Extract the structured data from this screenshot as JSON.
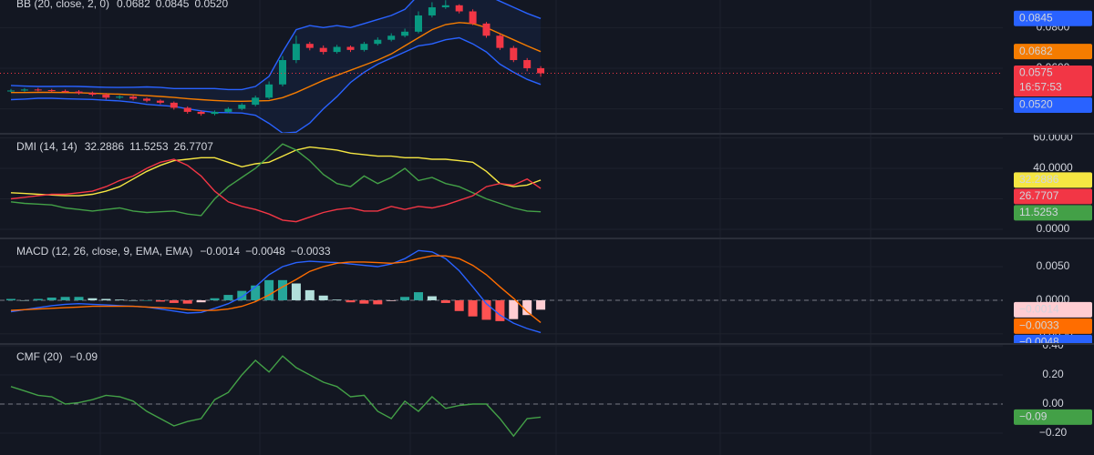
{
  "chart_data": [
    {
      "type": "candlestick",
      "title": "BB (20, close, 2, 0)",
      "up_color": "#089981",
      "down_color": "#f23645",
      "open": [
        0.0488,
        0.049,
        0.0495,
        0.0492,
        0.0488,
        0.0485,
        0.0478,
        0.047,
        0.0455,
        0.046,
        0.045,
        0.044,
        0.043,
        0.0405,
        0.0385,
        0.0375,
        0.0385,
        0.04,
        0.042,
        0.0455,
        0.052,
        0.064,
        0.072,
        0.07,
        0.068,
        0.0705,
        0.069,
        0.072,
        0.074,
        0.076,
        0.078,
        0.086,
        0.09,
        0.091,
        0.088,
        0.082,
        0.076,
        0.07,
        0.064,
        0.06
      ],
      "high": [
        0.0498,
        0.0502,
        0.0503,
        0.0498,
        0.0495,
        0.0492,
        0.0485,
        0.0478,
        0.0466,
        0.0468,
        0.0456,
        0.0446,
        0.0436,
        0.0412,
        0.0392,
        0.0392,
        0.0408,
        0.0428,
        0.0465,
        0.0535,
        0.066,
        0.076,
        0.073,
        0.0712,
        0.0715,
        0.0712,
        0.073,
        0.0752,
        0.0772,
        0.0795,
        0.088,
        0.0925,
        0.0935,
        0.0915,
        0.089,
        0.0828,
        0.077,
        0.071,
        0.065,
        0.061
      ],
      "low": [
        0.0482,
        0.0484,
        0.0486,
        0.0482,
        0.0478,
        0.047,
        0.0462,
        0.0446,
        0.0448,
        0.0442,
        0.0432,
        0.0422,
        0.0396,
        0.0376,
        0.0366,
        0.0368,
        0.0378,
        0.0393,
        0.0412,
        0.0448,
        0.051,
        0.0625,
        0.0688,
        0.0668,
        0.0672,
        0.068,
        0.0682,
        0.0712,
        0.0732,
        0.0752,
        0.0772,
        0.085,
        0.0892,
        0.087,
        0.0812,
        0.075,
        0.069,
        0.063,
        0.0585,
        0.0558
      ],
      "close": [
        0.049,
        0.0495,
        0.0492,
        0.0488,
        0.0485,
        0.0478,
        0.047,
        0.0455,
        0.046,
        0.045,
        0.044,
        0.043,
        0.0405,
        0.0385,
        0.0375,
        0.0385,
        0.04,
        0.042,
        0.0455,
        0.052,
        0.064,
        0.072,
        0.07,
        0.068,
        0.0705,
        0.069,
        0.072,
        0.074,
        0.076,
        0.078,
        0.086,
        0.09,
        0.091,
        0.088,
        0.082,
        0.076,
        0.07,
        0.064,
        0.06,
        0.0575
      ],
      "countdown": "16:57:53",
      "band_fill": "rgba(41,98,255,0.08)",
      "series": [
        {
          "color": "#f57c00",
          "last_label": "0.0682",
          "values": [
            0.048,
            0.048,
            0.0481,
            0.0481,
            0.048,
            0.0479,
            0.0477,
            0.0474,
            0.0472,
            0.0469,
            0.0465,
            0.0461,
            0.0456,
            0.045,
            0.0445,
            0.0441,
            0.0438,
            0.0437,
            0.0439,
            0.044,
            0.0455,
            0.048,
            0.051,
            0.054,
            0.0565,
            0.059,
            0.0615,
            0.064,
            0.067,
            0.071,
            0.075,
            0.079,
            0.0815,
            0.0825,
            0.082,
            0.08,
            0.077,
            0.074,
            0.071,
            0.0682
          ]
        },
        {
          "color": "#2962ff",
          "last_label": "0.0845",
          "values": [
            0.0515,
            0.0512,
            0.051,
            0.051,
            0.0511,
            0.051,
            0.0508,
            0.0506,
            0.0505,
            0.0506,
            0.0508,
            0.0505,
            0.05,
            0.05,
            0.05,
            0.05,
            0.0495,
            0.0495,
            0.051,
            0.056,
            0.068,
            0.079,
            0.081,
            0.08,
            0.081,
            0.08,
            0.082,
            0.084,
            0.086,
            0.089,
            0.096,
            0.1,
            0.102,
            0.101,
            0.099,
            0.096,
            0.093,
            0.09,
            0.087,
            0.0845
          ]
        },
        {
          "color": "#2962ff",
          "last_label": "0.0520",
          "values": [
            0.0445,
            0.0448,
            0.0452,
            0.0452,
            0.0449,
            0.0448,
            0.0446,
            0.0442,
            0.0439,
            0.0432,
            0.0422,
            0.0417,
            0.0412,
            0.04,
            0.039,
            0.0382,
            0.0381,
            0.0379,
            0.0368,
            0.0328,
            0.028,
            0.0285,
            0.033,
            0.04,
            0.046,
            0.053,
            0.058,
            0.062,
            0.065,
            0.068,
            0.071,
            0.072,
            0.074,
            0.075,
            0.072,
            0.068,
            0.062,
            0.058,
            0.0545,
            0.052
          ]
        }
      ],
      "ylim": [
        0.0277,
        0.0936
      ],
      "yticks": [
        {
          "value": 0.08,
          "label": "0.0800"
        },
        {
          "value": 0.06,
          "label": "0.0600"
        },
        {
          "value": 0.04,
          "label": "0.0400"
        }
      ],
      "grid": true
    },
    {
      "type": "line",
      "title": "DMI (14, 14)",
      "series": [
        {
          "color": "#f5e642",
          "values": [
            24,
            23.5,
            23,
            22.5,
            22,
            22,
            23,
            25,
            28,
            33,
            38,
            42,
            45,
            46,
            47,
            47,
            44,
            41,
            43,
            44,
            48,
            52,
            54,
            53,
            52,
            50,
            49,
            48,
            48,
            47,
            47,
            46,
            46,
            45,
            44,
            38,
            30,
            28,
            29,
            32.2886
          ]
        },
        {
          "color": "#43a047",
          "values": [
            18,
            17,
            16.5,
            16,
            14,
            13,
            12,
            13,
            14,
            12,
            11,
            11.5,
            12,
            10,
            9,
            20,
            28,
            34,
            40,
            48,
            56,
            52,
            45,
            36,
            30,
            28,
            35,
            30,
            34,
            40,
            32,
            34,
            30,
            28,
            24,
            20,
            17,
            14,
            12,
            11.5253
          ]
        },
        {
          "color": "#f23645",
          "values": [
            20,
            21,
            22,
            23,
            23,
            24,
            25,
            28,
            32,
            35,
            40,
            44,
            46,
            42,
            35,
            25,
            18,
            15,
            13,
            10,
            6,
            5,
            8,
            11,
            13,
            14,
            12,
            12,
            15,
            13,
            15,
            14,
            16,
            19,
            22,
            28,
            30,
            29,
            33,
            26.7707
          ]
        }
      ],
      "ylim": [
        -6,
        62.7
      ],
      "yticks": [
        {
          "value": 0,
          "label": "0.0000"
        },
        {
          "value": 20,
          "label": "20.0000"
        },
        {
          "value": 40,
          "label": "40.0000"
        },
        {
          "value": 60,
          "label": "60.0000"
        }
      ],
      "grid": true
    },
    {
      "type": "macd",
      "title": "MACD (12, 26, close, 9, EMA, EMA)",
      "series": [
        {
          "style": "histogram",
          "color": "#ffcdd2",
          "colors": [
            "#26a69a",
            "#b2dfdb",
            "#ff5252",
            "#ffcdd2"
          ],
          "last_label": "−0.0014",
          "values": [
            0.0002,
            0,
            0.0002,
            0.0004,
            0.0005,
            0.0005,
            0.0003,
            0.0002,
            0.0001,
            0,
            0,
            -0.0002,
            -0.0004,
            -0.0005,
            -0.0003,
            0.0003,
            0.0008,
            0.0014,
            0.0022,
            0.003,
            0.003,
            0.0025,
            0.0015,
            0.0007,
            0.0001,
            -0.0003,
            -0.0005,
            -0.0006,
            -0.0001,
            0.0005,
            0.0012,
            0.0006,
            -0.0004,
            -0.0016,
            -0.0024,
            -0.0029,
            -0.0031,
            -0.0028,
            -0.0022,
            -0.0014
          ]
        },
        {
          "color": "#2962ff",
          "last_label": "−0.0048",
          "values": [
            -0.0017,
            -0.0014,
            -0.0011,
            -0.0008,
            -0.0006,
            -0.0005,
            -0.0006,
            -0.0007,
            -0.0008,
            -0.0009,
            -0.001,
            -0.0013,
            -0.0016,
            -0.0019,
            -0.0018,
            -0.0012,
            -0.0005,
            0.0005,
            0.002,
            0.0038,
            0.005,
            0.0056,
            0.0058,
            0.0057,
            0.0056,
            0.0054,
            0.0052,
            0.005,
            0.0054,
            0.0062,
            0.0074,
            0.0072,
            0.0062,
            0.0044,
            0.002,
            -0.0005,
            -0.0022,
            -0.0034,
            -0.0042,
            -0.0048
          ]
        },
        {
          "color": "#ff6d00",
          "last_label": "−0.0033",
          "values": [
            -0.0015,
            -0.0014,
            -0.0013,
            -0.0012,
            -0.0011,
            -0.001,
            -0.0009,
            -0.0009,
            -0.0009,
            -0.0009,
            -0.001,
            -0.0011,
            -0.0012,
            -0.0014,
            -0.0015,
            -0.0015,
            -0.0013,
            -0.0009,
            -0.0002,
            0.0008,
            0.002,
            0.0031,
            0.0043,
            0.005,
            0.0055,
            0.0057,
            0.0057,
            0.0056,
            0.0055,
            0.0057,
            0.0062,
            0.0066,
            0.0066,
            0.0062,
            0.0052,
            0.0038,
            0.002,
            0.0003,
            -0.0017,
            -0.0033
          ]
        }
      ],
      "baseline": 0,
      "ylim": [
        -0.0065,
        0.0092
      ],
      "yticks": [
        {
          "value": 0.005,
          "label": "0.0050"
        },
        {
          "value": 0,
          "label": "0.0000"
        },
        {
          "value": -0.005,
          "label": "−0.0050"
        }
      ],
      "grid": true
    },
    {
      "type": "line",
      "title": "CMF (20)",
      "series": [
        {
          "color": "#43a047",
          "last_label": "−0.09",
          "values": [
            0.12,
            0.09,
            0.06,
            0.05,
            0.0,
            0.01,
            0.03,
            0.06,
            0.05,
            0.02,
            -0.05,
            -0.1,
            -0.15,
            -0.12,
            -0.1,
            0.03,
            0.08,
            0.2,
            0.3,
            0.22,
            0.33,
            0.25,
            0.2,
            0.15,
            0.12,
            0.05,
            0.06,
            -0.05,
            -0.1,
            0.02,
            -0.05,
            0.05,
            -0.03,
            -0.01,
            0.0,
            0.0,
            -0.1,
            -0.22,
            -0.1,
            -0.09
          ]
        }
      ],
      "baseline": 0,
      "ylim": [
        -0.35,
        0.4125
      ],
      "yticks": [
        {
          "value": 0.4,
          "label": "0.40"
        },
        {
          "value": 0.2,
          "label": "0.20"
        },
        {
          "value": 0,
          "label": "0.00"
        },
        {
          "value": -0.2,
          "label": "−0.20"
        }
      ],
      "grid": true
    }
  ]
}
